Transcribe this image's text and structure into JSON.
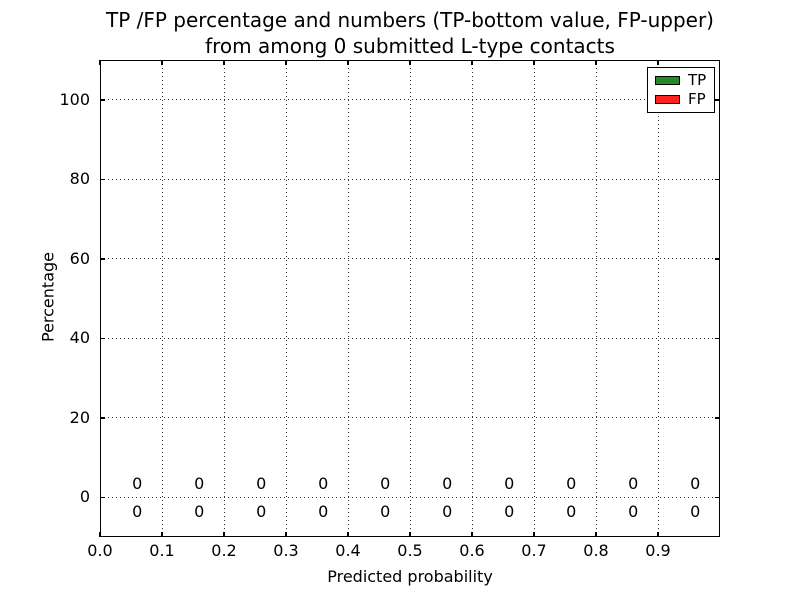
{
  "chart_data": {
    "type": "bar",
    "title_line1": "TP /FP percentage and numbers (TP-bottom value, FP-upper)",
    "title_line2": "from among 0 submitted L-type contacts",
    "xlabel": "Predicted probability",
    "ylabel": "Percentage",
    "xlim": [
      0.0,
      1.0
    ],
    "ylim": [
      -10,
      110
    ],
    "grid": "dotted",
    "x_ticks": [
      {
        "value": 0.0,
        "label": "0.0"
      },
      {
        "value": 0.1,
        "label": "0.1"
      },
      {
        "value": 0.2,
        "label": "0.2"
      },
      {
        "value": 0.3,
        "label": "0.3"
      },
      {
        "value": 0.4,
        "label": "0.4"
      },
      {
        "value": 0.5,
        "label": "0.5"
      },
      {
        "value": 0.6,
        "label": "0.6"
      },
      {
        "value": 0.7,
        "label": "0.7"
      },
      {
        "value": 0.8,
        "label": "0.8"
      },
      {
        "value": 0.9,
        "label": "0.9"
      }
    ],
    "y_ticks": [
      {
        "value": 0,
        "label": "0"
      },
      {
        "value": 20,
        "label": "20"
      },
      {
        "value": 40,
        "label": "40"
      },
      {
        "value": 60,
        "label": "60"
      },
      {
        "value": 80,
        "label": "80"
      },
      {
        "value": 100,
        "label": "100"
      }
    ],
    "bin_centers": [
      0.06,
      0.16,
      0.26,
      0.36,
      0.46,
      0.56,
      0.66,
      0.76,
      0.86,
      0.96
    ],
    "series": [
      {
        "name": "TP",
        "color": "#228B22",
        "percentages": [
          0,
          0,
          0,
          0,
          0,
          0,
          0,
          0,
          0,
          0
        ],
        "counts": [
          0,
          0,
          0,
          0,
          0,
          0,
          0,
          0,
          0,
          0
        ],
        "count_row_y": -3.7
      },
      {
        "name": "FP",
        "color": "#FF2222",
        "percentages": [
          0,
          0,
          0,
          0,
          0,
          0,
          0,
          0,
          0,
          0
        ],
        "counts": [
          0,
          0,
          0,
          0,
          0,
          0,
          0,
          0,
          0,
          0
        ],
        "count_row_y": 3.4
      }
    ],
    "legend": {
      "position": "upper-right",
      "entries": [
        {
          "label": "TP",
          "color": "#228B22"
        },
        {
          "label": "FP",
          "color": "#FF2222"
        }
      ]
    }
  }
}
